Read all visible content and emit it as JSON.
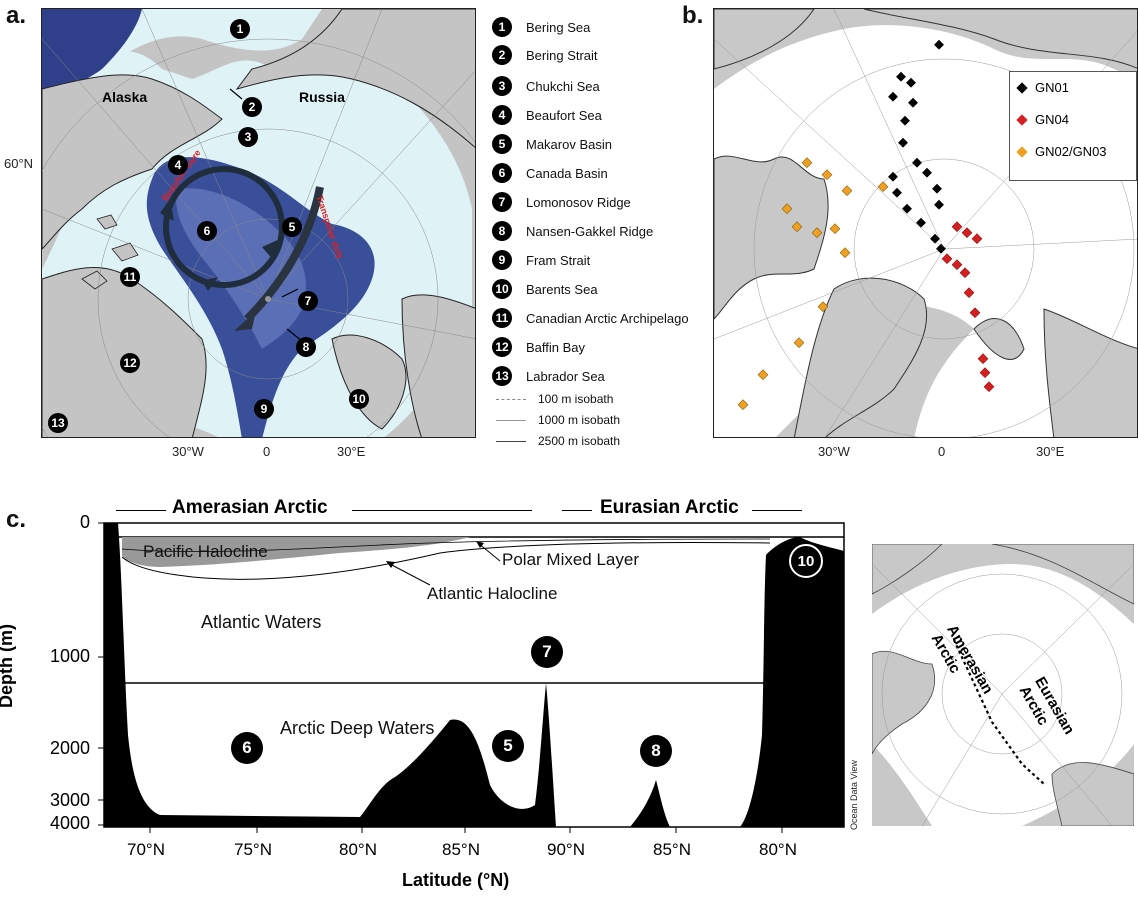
{
  "panel_a": {
    "label": "a.",
    "place_labels": [
      "Alaska",
      "Russia"
    ],
    "lat_label": "60°N",
    "lon_ticks": [
      "30°W",
      "0",
      "30°E"
    ],
    "current_labels": [
      "Beaufort Gyre",
      "Transpolar drift"
    ],
    "map_numbers": [
      "1",
      "2",
      "3",
      "4",
      "5",
      "6",
      "7",
      "8",
      "9",
      "10",
      "11",
      "12",
      "13"
    ],
    "legend": [
      {
        "num": "1",
        "name": "Bering Sea"
      },
      {
        "num": "2",
        "name": "Bering Strait"
      },
      {
        "num": "3",
        "name": "Chukchi Sea"
      },
      {
        "num": "4",
        "name": "Beaufort Sea"
      },
      {
        "num": "5",
        "name": "Makarov Basin"
      },
      {
        "num": "6",
        "name": "Canada Basin"
      },
      {
        "num": "7",
        "name": "Lomonosov Ridge"
      },
      {
        "num": "8",
        "name": "Nansen-Gakkel Ridge"
      },
      {
        "num": "9",
        "name": "Fram Strait"
      },
      {
        "num": "10",
        "name": "Barents Sea"
      },
      {
        "num": "11",
        "name": "Canadian Arctic Archipelago"
      },
      {
        "num": "12",
        "name": "Baffin Bay"
      },
      {
        "num": "13",
        "name": "Labrador Sea"
      }
    ],
    "isobaths": [
      "100 m isobath",
      "1000 m isobath",
      "2500 m isobath"
    ]
  },
  "panel_b": {
    "label": "b.",
    "lon_ticks": [
      "30°W",
      "0",
      "30°E"
    ],
    "legend": [
      {
        "name": "GN01",
        "color": "#000000"
      },
      {
        "name": "GN04",
        "color": "#d42020"
      },
      {
        "name": "GN02/GN03",
        "color": "#f0a020"
      }
    ]
  },
  "panel_c": {
    "label": "c.",
    "region_labels": [
      "Amerasian Arctic",
      "Eurasian Arctic"
    ],
    "layers": [
      "Pacific Halocline",
      "Polar Mixed Layer",
      "Atlantic Halocline",
      "Atlantic Waters",
      "Arctic Deep Waters"
    ],
    "numbers": [
      "6",
      "5",
      "7",
      "8",
      "10"
    ],
    "ylabel": "Depth (m)",
    "xlabel": "Latitude (°N)",
    "y_ticks": [
      "0",
      "1000",
      "2000",
      "3000",
      "4000"
    ],
    "x_ticks": [
      "70°N",
      "75°N",
      "80°N",
      "85°N",
      "90°N",
      "85°N",
      "80°N"
    ],
    "credit": "Ocean Data View",
    "inset_labels": [
      "Amerasian Arctic",
      "Eurasian Arctic"
    ]
  }
}
